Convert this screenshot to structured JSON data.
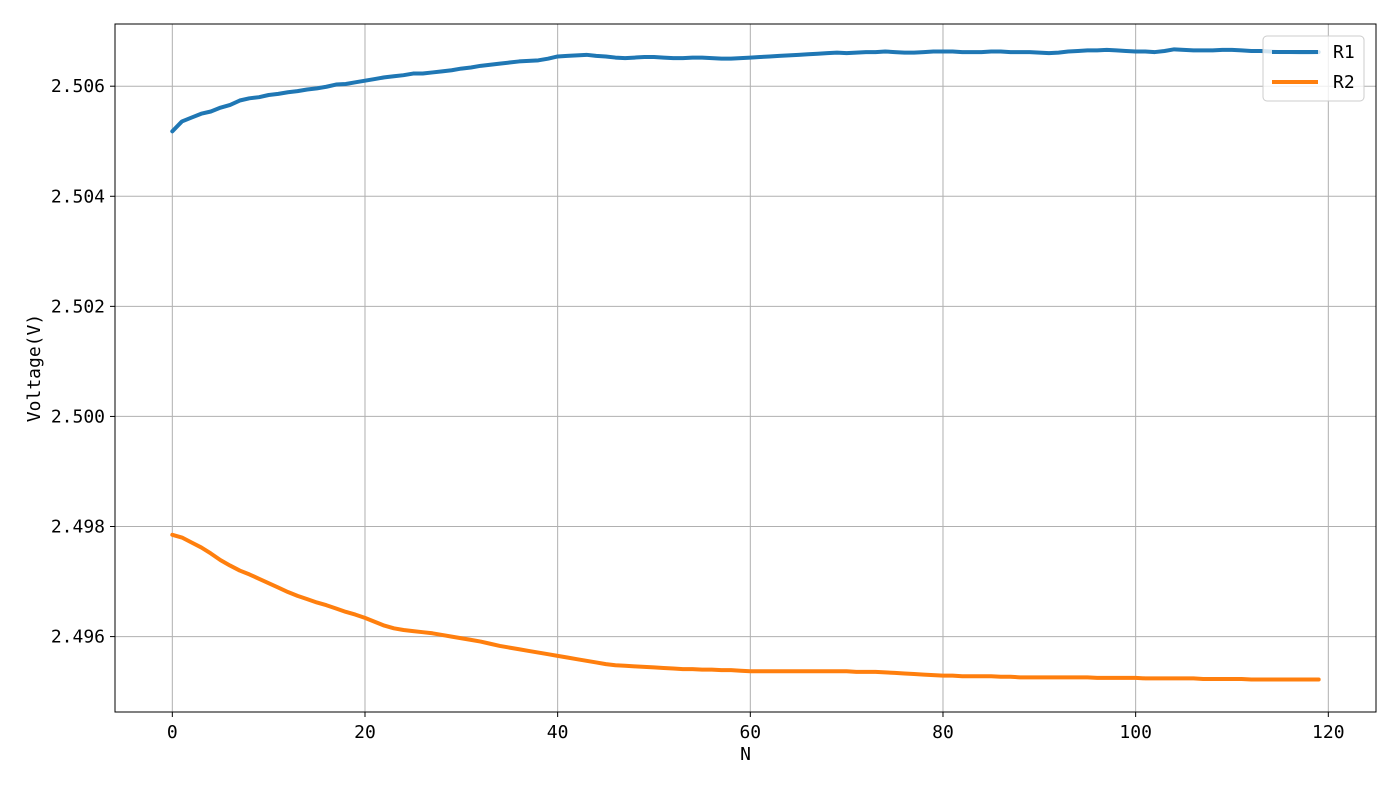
{
  "chart_data": {
    "type": "line",
    "title": "",
    "xlabel": "N",
    "ylabel": "Voltage(V)",
    "xlim": [
      -5.95,
      124.95
    ],
    "ylim": [
      2.49463,
      2.50713
    ],
    "x_ticks": [
      0,
      20,
      40,
      60,
      80,
      100,
      120
    ],
    "y_ticks": [
      2.496,
      2.498,
      2.5,
      2.502,
      2.504,
      2.506
    ],
    "x_tick_labels": [
      "0",
      "20",
      "40",
      "60",
      "80",
      "100",
      "120"
    ],
    "y_tick_labels": [
      "2.496",
      "2.498",
      "2.500",
      "2.502",
      "2.504",
      "2.506"
    ],
    "grid": true,
    "legend_position": "top-right",
    "series": [
      {
        "name": "R1",
        "color": "#1f77b4",
        "x_start": 0,
        "x_step": 1,
        "values": [
          2.50518,
          2.50536,
          2.50543,
          2.5055,
          2.50554,
          2.50561,
          2.50566,
          2.50574,
          2.50578,
          2.5058,
          2.50584,
          2.50586,
          2.50589,
          2.50591,
          2.50594,
          2.50596,
          2.50599,
          2.50603,
          2.50604,
          2.50607,
          2.5061,
          2.50613,
          2.50616,
          2.50618,
          2.5062,
          2.50623,
          2.50623,
          2.50625,
          2.50627,
          2.50629,
          2.50632,
          2.50634,
          2.50637,
          2.50639,
          2.50641,
          2.50643,
          2.50645,
          2.50646,
          2.50647,
          2.5065,
          2.50654,
          2.50655,
          2.50656,
          2.50657,
          2.50655,
          2.50654,
          2.50652,
          2.50651,
          2.50652,
          2.50653,
          2.50653,
          2.50652,
          2.50651,
          2.50651,
          2.50652,
          2.50652,
          2.50651,
          2.5065,
          2.5065,
          2.50651,
          2.50652,
          2.50653,
          2.50654,
          2.50655,
          2.50656,
          2.50657,
          2.50658,
          2.50659,
          2.5066,
          2.50661,
          2.5066,
          2.50661,
          2.50662,
          2.50662,
          2.50663,
          2.50662,
          2.50661,
          2.50661,
          2.50662,
          2.50663,
          2.50663,
          2.50663,
          2.50662,
          2.50662,
          2.50662,
          2.50663,
          2.50663,
          2.50662,
          2.50662,
          2.50662,
          2.50661,
          2.5066,
          2.50661,
          2.50663,
          2.50664,
          2.50665,
          2.50665,
          2.50666,
          2.50665,
          2.50664,
          2.50663,
          2.50663,
          2.50662,
          2.50664,
          2.50667,
          2.50666,
          2.50665,
          2.50665,
          2.50665,
          2.50666,
          2.50666,
          2.50665,
          2.50664,
          2.50664,
          2.50663,
          2.50662,
          2.50662,
          2.50661,
          2.50661,
          2.50662
        ]
      },
      {
        "name": "R2",
        "color": "#ff7f0e",
        "x_start": 0,
        "x_step": 1,
        "values": [
          2.49785,
          2.4978,
          2.49771,
          2.49762,
          2.49751,
          2.49739,
          2.49729,
          2.4972,
          2.49713,
          2.49705,
          2.49697,
          2.49689,
          2.49681,
          2.49674,
          2.49668,
          2.49662,
          2.49657,
          2.49651,
          2.49645,
          2.4964,
          2.49634,
          2.49627,
          2.4962,
          2.49615,
          2.49612,
          2.4961,
          2.49608,
          2.49606,
          2.49603,
          2.496,
          2.49597,
          2.49594,
          2.49591,
          2.49587,
          2.49583,
          2.4958,
          2.49577,
          2.49574,
          2.49571,
          2.49568,
          2.49565,
          2.49562,
          2.49559,
          2.49556,
          2.49553,
          2.4955,
          2.49548,
          2.49547,
          2.49546,
          2.49545,
          2.49544,
          2.49543,
          2.49542,
          2.49541,
          2.49541,
          2.4954,
          2.4954,
          2.49539,
          2.49539,
          2.49538,
          2.49537,
          2.49537,
          2.49537,
          2.49537,
          2.49537,
          2.49537,
          2.49537,
          2.49537,
          2.49537,
          2.49537,
          2.49537,
          2.49536,
          2.49536,
          2.49536,
          2.49535,
          2.49534,
          2.49533,
          2.49532,
          2.49531,
          2.4953,
          2.49529,
          2.49529,
          2.49528,
          2.49528,
          2.49528,
          2.49528,
          2.49527,
          2.49527,
          2.49526,
          2.49526,
          2.49526,
          2.49526,
          2.49526,
          2.49526,
          2.49526,
          2.49526,
          2.49525,
          2.49525,
          2.49525,
          2.49525,
          2.49525,
          2.49524,
          2.49524,
          2.49524,
          2.49524,
          2.49524,
          2.49524,
          2.49523,
          2.49523,
          2.49523,
          2.49523,
          2.49523,
          2.49522,
          2.49522,
          2.49522,
          2.49522,
          2.49522,
          2.49522,
          2.49522,
          2.49522
        ]
      }
    ]
  }
}
